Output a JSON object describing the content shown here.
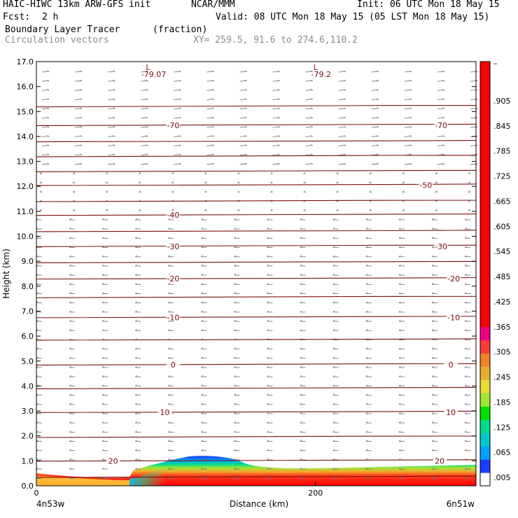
{
  "header": {
    "model": "HAIC-HIWC 13km ARW-GFS init",
    "org": "NCAR/MMM",
    "init": "Init: 06 UTC Mon 18 May 15",
    "fcst_label": "Fcst:",
    "fcst_value": "2 h",
    "valid": "Valid: 08 UTC Mon 18 May 15 (05 LST Mon 18 May 15)",
    "field": "Boundary Layer Tracer",
    "units": "(fraction)",
    "vectors": "Circulation vectors",
    "xy": "XY= 259.5, 91.6 to 274.6,110.2"
  },
  "chart_data": {
    "type": "contour-cross-section",
    "xlabel": "Distance (km)",
    "ylabel": "Height (km)",
    "xlim": [
      0,
      315
    ],
    "ylim": [
      0,
      17
    ],
    "xticks": [
      {
        "v": 0,
        "label": "0"
      },
      {
        "v": 200,
        "label": "200"
      }
    ],
    "x_end_labels": {
      "left": "4n53w",
      "right": "6n51w"
    },
    "yticks": [
      "0.0",
      "1.0",
      "2.0",
      "3.0",
      "4.0",
      "5.0",
      "6.0",
      "7.0",
      "8.0",
      "9.0",
      "10.0",
      "11.0",
      "12.0",
      "13.0",
      "14.0",
      "15.0",
      "16.0",
      "17.0"
    ],
    "colorbar": {
      "labels": [
        ".005",
        ".065",
        ".125",
        ".185",
        ".245",
        ".305",
        ".365",
        ".425",
        ".485",
        ".545",
        ".605",
        ".665",
        ".725",
        ".785",
        ".845",
        ".905",
        "–"
      ],
      "colors": [
        "#ffffff",
        "#1e3cff",
        "#00a0ff",
        "#00c8c8",
        "#00dc8c",
        "#00e000",
        "#a0e632",
        "#e6dc32",
        "#e6af2d",
        "#f08228",
        "#fa3c3c",
        "#f00082",
        "#ff0000",
        "#ff0000",
        "#ff0000",
        "#ff0000",
        "#ff0000",
        "#ff0000",
        "#ff0000",
        "#ff0000",
        "#ff0000",
        "#ff0000",
        "#ff0000",
        "#ff0000",
        "#ff0000",
        "#ff0000",
        "#ff0000",
        "#ff0000",
        "#ff0000",
        "#ff0000",
        "#ff0000",
        "#ff0000"
      ]
    },
    "temperature_levels": [
      {
        "h": 0.35,
        "label": ""
      },
      {
        "h": 1.0,
        "label": "20",
        "lx": 55,
        "rx": 289
      },
      {
        "h": 1.95,
        "label": ""
      },
      {
        "h": 2.95,
        "label": "10",
        "lx": 92,
        "rx": 297
      },
      {
        "h": 3.9,
        "label": ""
      },
      {
        "h": 4.85,
        "label": "0",
        "lx": 98,
        "rx": 297
      },
      {
        "h": 5.85,
        "label": ""
      },
      {
        "h": 6.75,
        "label": "-10",
        "lx": 98,
        "rx": 299
      },
      {
        "h": 7.55,
        "label": ""
      },
      {
        "h": 8.3,
        "label": "-20",
        "lx": 98,
        "rx": 299
      },
      {
        "h": 8.95,
        "label": ""
      },
      {
        "h": 9.6,
        "label": "-30",
        "lx": 98,
        "rx": 290
      },
      {
        "h": 10.2,
        "label": ""
      },
      {
        "h": 10.85,
        "label": "-40",
        "lx": 98,
        "rx": null
      },
      {
        "h": 11.4,
        "label": ""
      },
      {
        "h": 12.05,
        "label": "-50",
        "lx": null,
        "rx": 279
      },
      {
        "h": 12.6,
        "label": ""
      },
      {
        "h": 13.2,
        "label": ""
      },
      {
        "h": 13.8,
        "label": ""
      },
      {
        "h": 14.45,
        "label": "-70",
        "lx": 98,
        "rx": 290
      },
      {
        "h": 15.2,
        "label": ""
      }
    ],
    "lows": [
      {
        "x": 80,
        "label": "L",
        "value": "-79.07"
      },
      {
        "x": 200,
        "label": "L",
        "value": "-79.2"
      }
    ]
  }
}
